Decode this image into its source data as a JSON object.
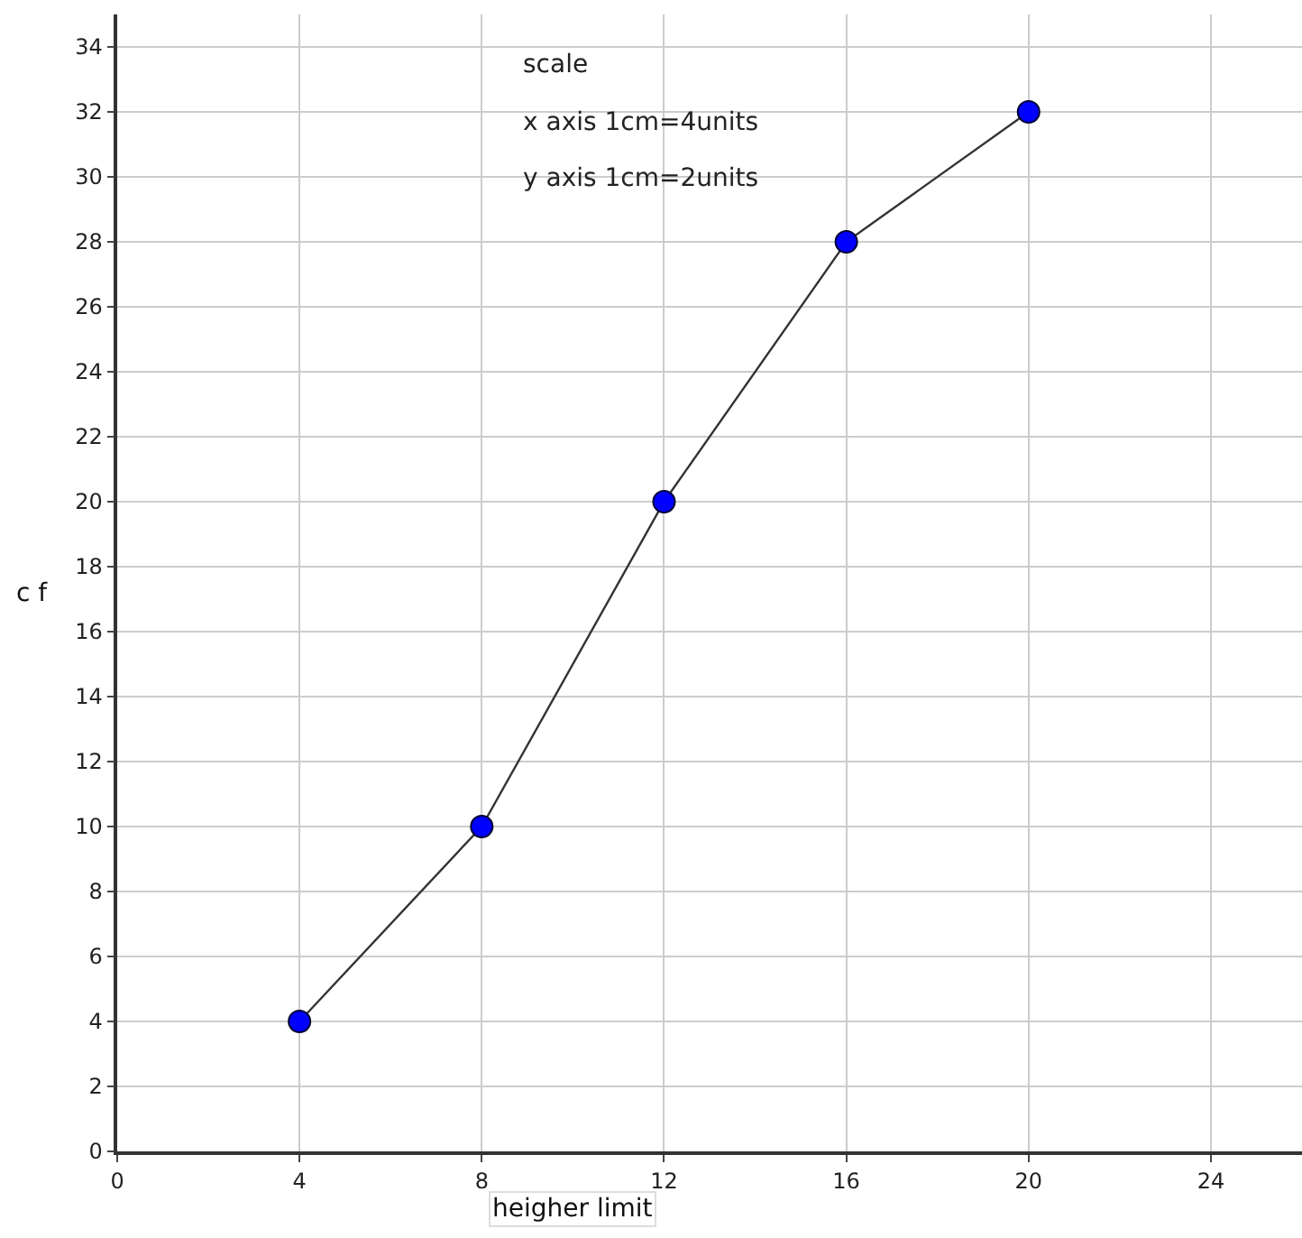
{
  "chart_data": {
    "type": "line",
    "xlabel": "heigher limit",
    "ylabel": "c f",
    "annotations": [
      "scale",
      "x axis 1cm=4units",
      "y axis 1cm=2units"
    ],
    "x": [
      4,
      8,
      12,
      16,
      20
    ],
    "series": [
      {
        "color": "#0000ff",
        "values": [
          4,
          10,
          20,
          28,
          32
        ]
      }
    ],
    "xlim": [
      0,
      26
    ],
    "xticks": [
      0,
      4,
      8,
      12,
      16,
      20,
      24
    ],
    "ylim": [
      0,
      35
    ],
    "yticks": [
      0,
      2,
      4,
      6,
      8,
      10,
      12,
      14,
      16,
      18,
      20,
      22,
      24,
      26,
      28,
      30,
      32,
      34
    ],
    "grid": true,
    "marker": "circle",
    "line_style": "solid"
  }
}
